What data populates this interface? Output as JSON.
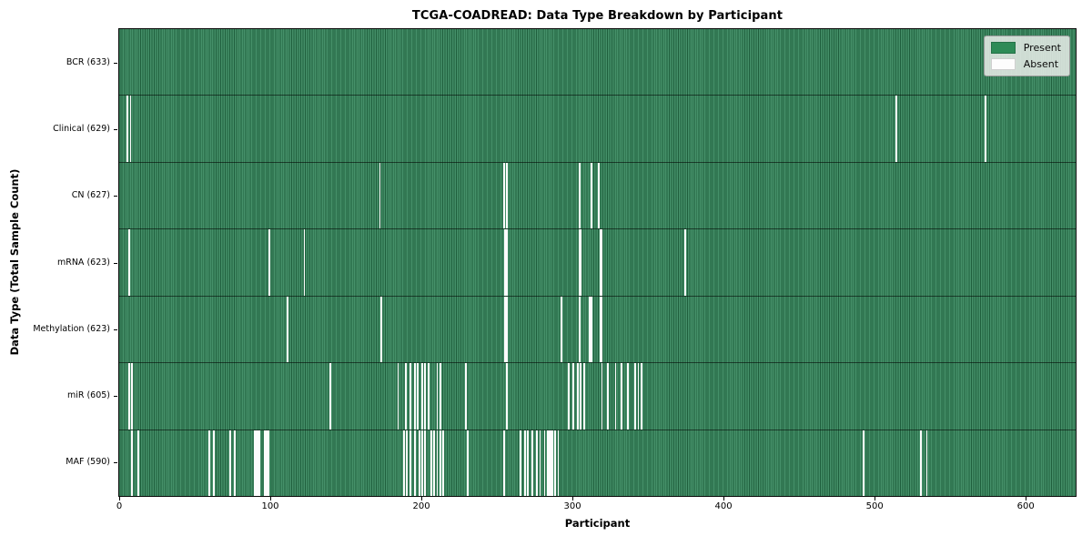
{
  "chart_data": {
    "type": "heatmap",
    "title": "TCGA-COADREAD: Data Type Breakdown by Participant",
    "xlabel": "Participant",
    "ylabel": "Data Type (Total Sample Count)",
    "x_range": [
      0,
      633
    ],
    "n_participants": 633,
    "x_ticks": [
      0,
      100,
      200,
      300,
      400,
      500,
      600
    ],
    "legend": {
      "present": "Present",
      "absent": "Absent",
      "position": "upper right"
    },
    "grid": false,
    "rows": [
      {
        "data_type": "BCR",
        "label": "BCR (633)",
        "present_count": 633,
        "absent_count": 0,
        "absent_participants": []
      },
      {
        "data_type": "Clinical",
        "label": "Clinical (629)",
        "present_count": 629,
        "absent_count": 4,
        "absent_participants": [
          5,
          7,
          514,
          573
        ]
      },
      {
        "data_type": "CN",
        "label": "CN (627)",
        "present_count": 627,
        "absent_count": 6,
        "absent_participants": [
          172,
          254,
          256,
          304,
          312,
          317
        ]
      },
      {
        "data_type": "mRNA",
        "label": "mRNA (623)",
        "present_count": 623,
        "absent_count": 10,
        "absent_participants": [
          6,
          99,
          122,
          255,
          256,
          304,
          305,
          318,
          319,
          374
        ]
      },
      {
        "data_type": "Methylation",
        "label": "Methylation (623)",
        "present_count": 623,
        "absent_count": 10,
        "absent_participants": [
          111,
          173,
          255,
          256,
          292,
          304,
          311,
          312,
          318,
          319
        ]
      },
      {
        "data_type": "miR",
        "label": "miR (605)",
        "present_count": 605,
        "absent_count": 28,
        "absent_participants": [
          6,
          8,
          139,
          184,
          189,
          192,
          195,
          197,
          200,
          202,
          204,
          210,
          212,
          229,
          256,
          297,
          300,
          303,
          305,
          307,
          319,
          323,
          328,
          332,
          336,
          341,
          343,
          345
        ]
      },
      {
        "data_type": "MAF",
        "label": "MAF (590)",
        "present_count": 590,
        "absent_count": 43,
        "absent_participants": [
          8,
          12,
          59,
          62,
          73,
          76,
          89,
          90,
          91,
          92,
          96,
          97,
          98,
          188,
          190,
          192,
          195,
          198,
          200,
          202,
          206,
          208,
          210,
          212,
          214,
          230,
          254,
          265,
          268,
          270,
          273,
          276,
          278,
          281,
          283,
          284,
          285,
          286,
          288,
          290,
          492,
          530,
          534
        ]
      }
    ],
    "colors": {
      "present": "#2E8B57",
      "present_stripe_dark": "#1f5f3d",
      "present_stripe_light": "#459069",
      "absent": "#fcfcfc",
      "legend_background": "#eaedea",
      "axis": "#0a0a0a"
    }
  }
}
